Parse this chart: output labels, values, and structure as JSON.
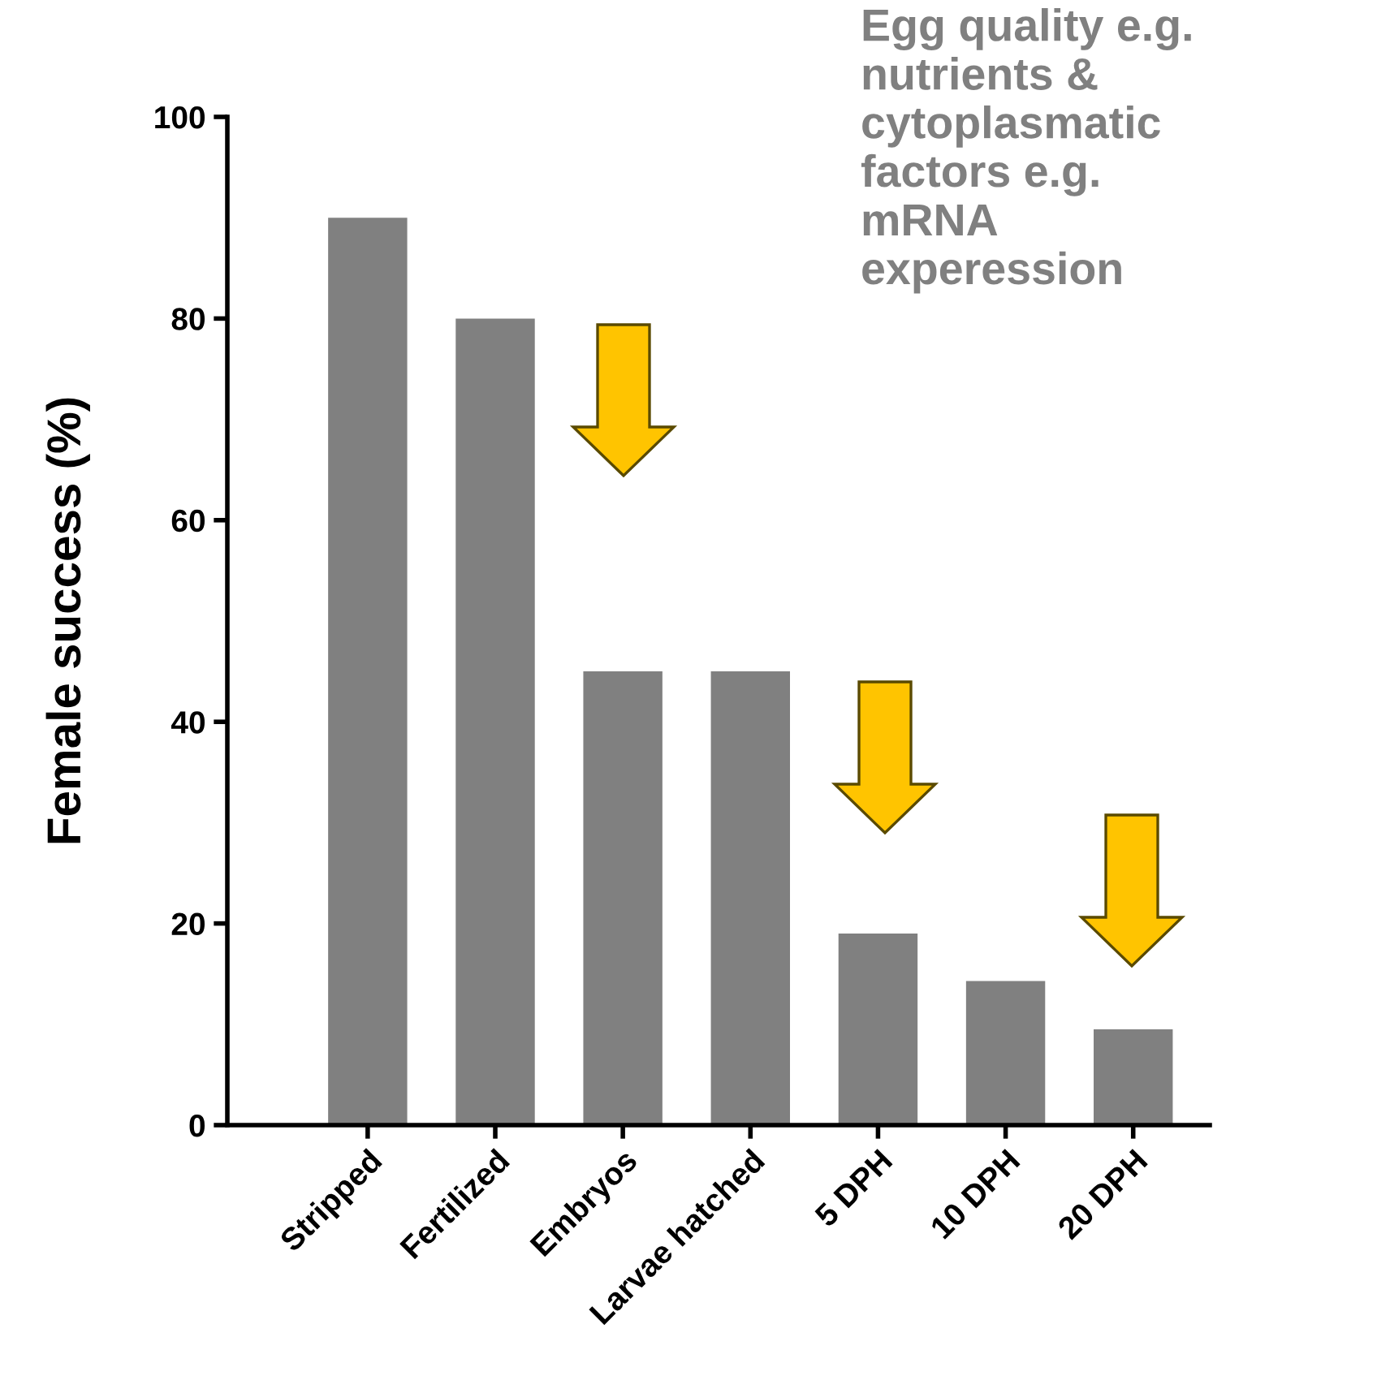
{
  "chart_data": {
    "type": "bar",
    "ylabel": "Female success (%)",
    "categories": [
      "Stripped",
      "Fertilized",
      "Embryos",
      "Larvae hatched",
      "5 DPH",
      "10 DPH",
      "20 DPH"
    ],
    "values": [
      90,
      80,
      45,
      45,
      19,
      14.3,
      9.5
    ],
    "color": "#808080",
    "ylim": [
      0,
      100
    ],
    "yticks": [
      0,
      20,
      40,
      60,
      80,
      100
    ],
    "grid": false,
    "annotations": [
      "Egg quality e.g.\nnutrients &\ncytoplasmatic\nfactors e.g.\nmRNA\nexperession"
    ]
  }
}
